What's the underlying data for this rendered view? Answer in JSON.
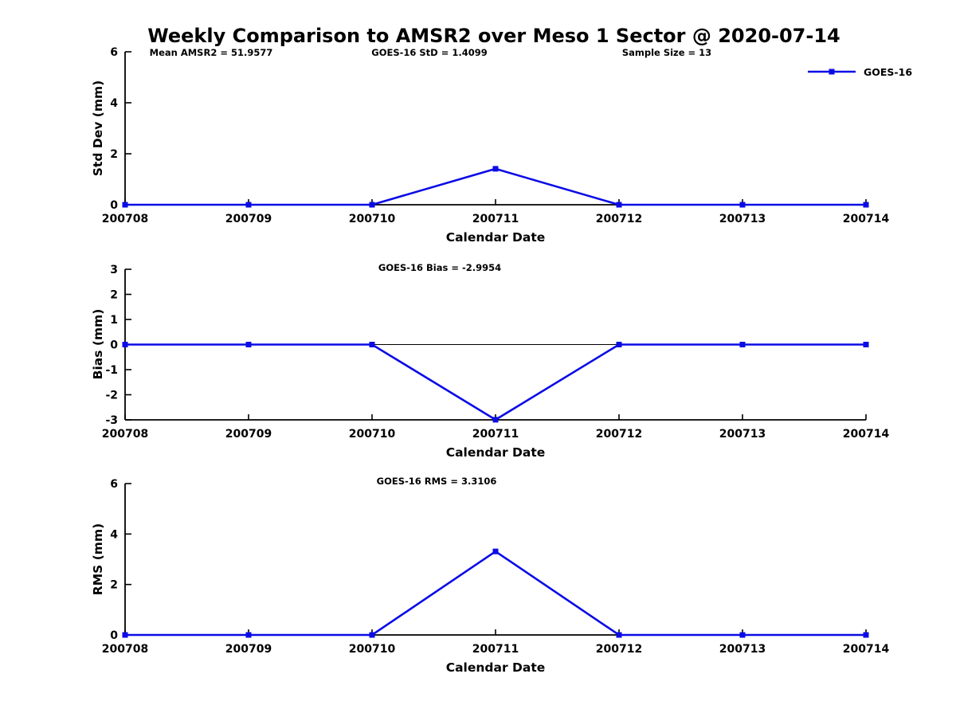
{
  "title": "Weekly Comparison to AMSR2 over Meso 1 Sector @ 2020-07-14",
  "colors": {
    "line": "#0b0be6",
    "axis": "#000000",
    "text": "#000000",
    "background": "#ffffff"
  },
  "legend": {
    "label": "GOES-16"
  },
  "chart_data": [
    {
      "type": "line",
      "series_name": "GOES-16",
      "ylabel": "Std Dev (mm)",
      "xlabel": "Calendar Date",
      "categories": [
        "200708",
        "200709",
        "200710",
        "200711",
        "200712",
        "200713",
        "200714"
      ],
      "values": [
        0,
        0,
        0,
        1.4099,
        0,
        0,
        0
      ],
      "ylim": [
        0,
        6
      ],
      "yticks": [
        0,
        2,
        4,
        6
      ],
      "annotations": [
        "Mean AMSR2 = 51.9577",
        "GOES-16 StD = 1.4099",
        "Sample Size = 13"
      ],
      "grid": false,
      "legend_position": "top-right",
      "marker": "square"
    },
    {
      "type": "line",
      "series_name": "GOES-16",
      "ylabel": "Bias (mm)",
      "xlabel": "Calendar Date",
      "categories": [
        "200708",
        "200709",
        "200710",
        "200711",
        "200712",
        "200713",
        "200714"
      ],
      "values": [
        0,
        0,
        0,
        -2.9954,
        0,
        0,
        0
      ],
      "ylim": [
        -3,
        3
      ],
      "yticks": [
        -3,
        -2,
        -1,
        0,
        1,
        2,
        3
      ],
      "annotations": [
        "GOES-16 Bias  = -2.9954"
      ],
      "zero_line": true,
      "grid": false,
      "marker": "square"
    },
    {
      "type": "line",
      "series_name": "GOES-16",
      "ylabel": "RMS (mm)",
      "xlabel": "Calendar Date",
      "categories": [
        "200708",
        "200709",
        "200710",
        "200711",
        "200712",
        "200713",
        "200714"
      ],
      "values": [
        0,
        0,
        0,
        3.3106,
        0,
        0,
        0
      ],
      "ylim": [
        0,
        6
      ],
      "yticks": [
        0,
        2,
        4,
        6
      ],
      "annotations": [
        "GOES-16 RMS = 3.3106"
      ],
      "grid": false,
      "marker": "square"
    }
  ]
}
